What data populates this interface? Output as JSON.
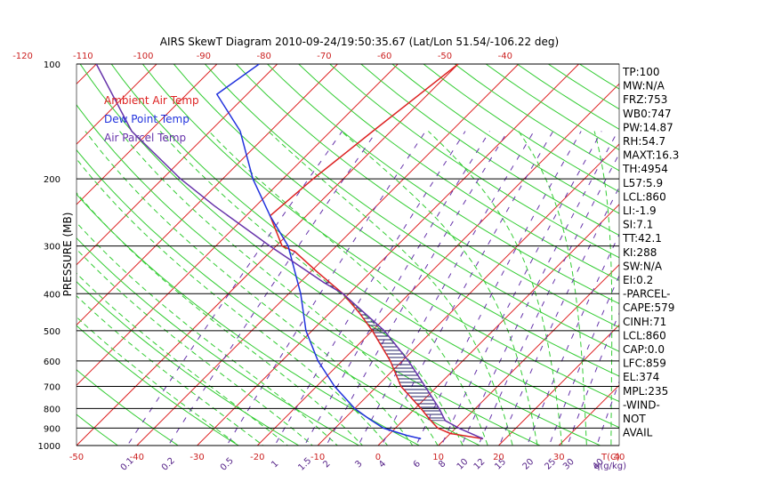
{
  "chart_data": {
    "type": "line",
    "title": "AIRS SkewT Diagram 2010-09-24/19:50:35.67 (Lat/Lon 51.54/-106.22 deg)",
    "ylabel": "PRESSURE (MB)",
    "xlabel_bottom_unit": "T(C)",
    "mixing_ratio_unit": "q(g/kg)",
    "y_scale": "log",
    "ylim": [
      1000,
      100
    ],
    "bottom_temp_ticks": [
      "-50",
      "-40",
      "-30",
      "-20",
      "-10",
      "0",
      "10",
      "20",
      "30",
      "40"
    ],
    "top_temp_ticks": [
      "-120",
      "-110",
      "-100",
      "-90",
      "-80",
      "-70",
      "-60",
      "-50",
      "-40"
    ],
    "pressure_ticks": [
      "100",
      "200",
      "300",
      "400",
      "500",
      "600",
      "700",
      "800",
      "900",
      "1000"
    ],
    "mixing_ratio_labels": [
      "0.1",
      "0.2",
      "0.5",
      "1",
      "1.5",
      "2",
      "3",
      "4",
      "6",
      "8",
      "10",
      "12",
      "15",
      "20",
      "25",
      "30",
      "40"
    ],
    "legend": [
      {
        "label": "Ambient Air Temp",
        "color": "#dd2222"
      },
      {
        "label": "Dew Point Temp",
        "color": "#2233dd"
      },
      {
        "label": "Air Parcel Temp",
        "color": "#6633aa"
      }
    ],
    "series": [
      {
        "name": "Ambient Air Temp",
        "pressure": [
          960,
          930,
          900,
          850,
          800,
          700,
          600,
          500,
          450,
          400,
          350,
          310,
          300,
          250,
          200,
          150,
          100
        ],
        "temperature": [
          16.3,
          10,
          7,
          4,
          1,
          -6,
          -12,
          -20,
          -25,
          -31,
          -39,
          -46,
          -49,
          -56,
          -55,
          -53,
          -50
        ]
      },
      {
        "name": "Dew Point Temp",
        "pressure": [
          960,
          940,
          900,
          850,
          800,
          700,
          600,
          500,
          400,
          300,
          250,
          200,
          150,
          120,
          100
        ],
        "temperature": [
          6,
          3,
          -2,
          -6,
          -10,
          -17,
          -24,
          -31,
          -38,
          -48,
          -56,
          -65,
          -75,
          -85,
          -83
        ]
      },
      {
        "name": "Air Parcel Temp",
        "pressure": [
          960,
          900,
          860,
          800,
          700,
          600,
          500,
          400,
          374,
          300,
          235,
          200,
          150,
          100
        ],
        "temperature": [
          16.3,
          10.5,
          7,
          4,
          -2,
          -9,
          -18,
          -31,
          -36,
          -51,
          -67,
          -77,
          -93,
          -110
        ]
      }
    ],
    "indices": [
      "TP:100",
      "MW:N/A",
      "FRZ:753",
      "WB0:747",
      "PW:14.87",
      "RH:54.7",
      "MAXT:16.3",
      "TH:4954",
      "L57:5.9",
      "LCL:860",
      "LI:-1.9",
      "SI:7.1",
      "TT:42.1",
      "KI:288",
      "SW:N/A",
      "EI:0.2",
      "-PARCEL-",
      "CAPE:579",
      "CINH:71",
      "LCL:860",
      "CAP:0.0",
      "LFC:859",
      "EL:374",
      "MPL:235",
      "-WIND-",
      "NOT",
      "AVAIL"
    ]
  }
}
